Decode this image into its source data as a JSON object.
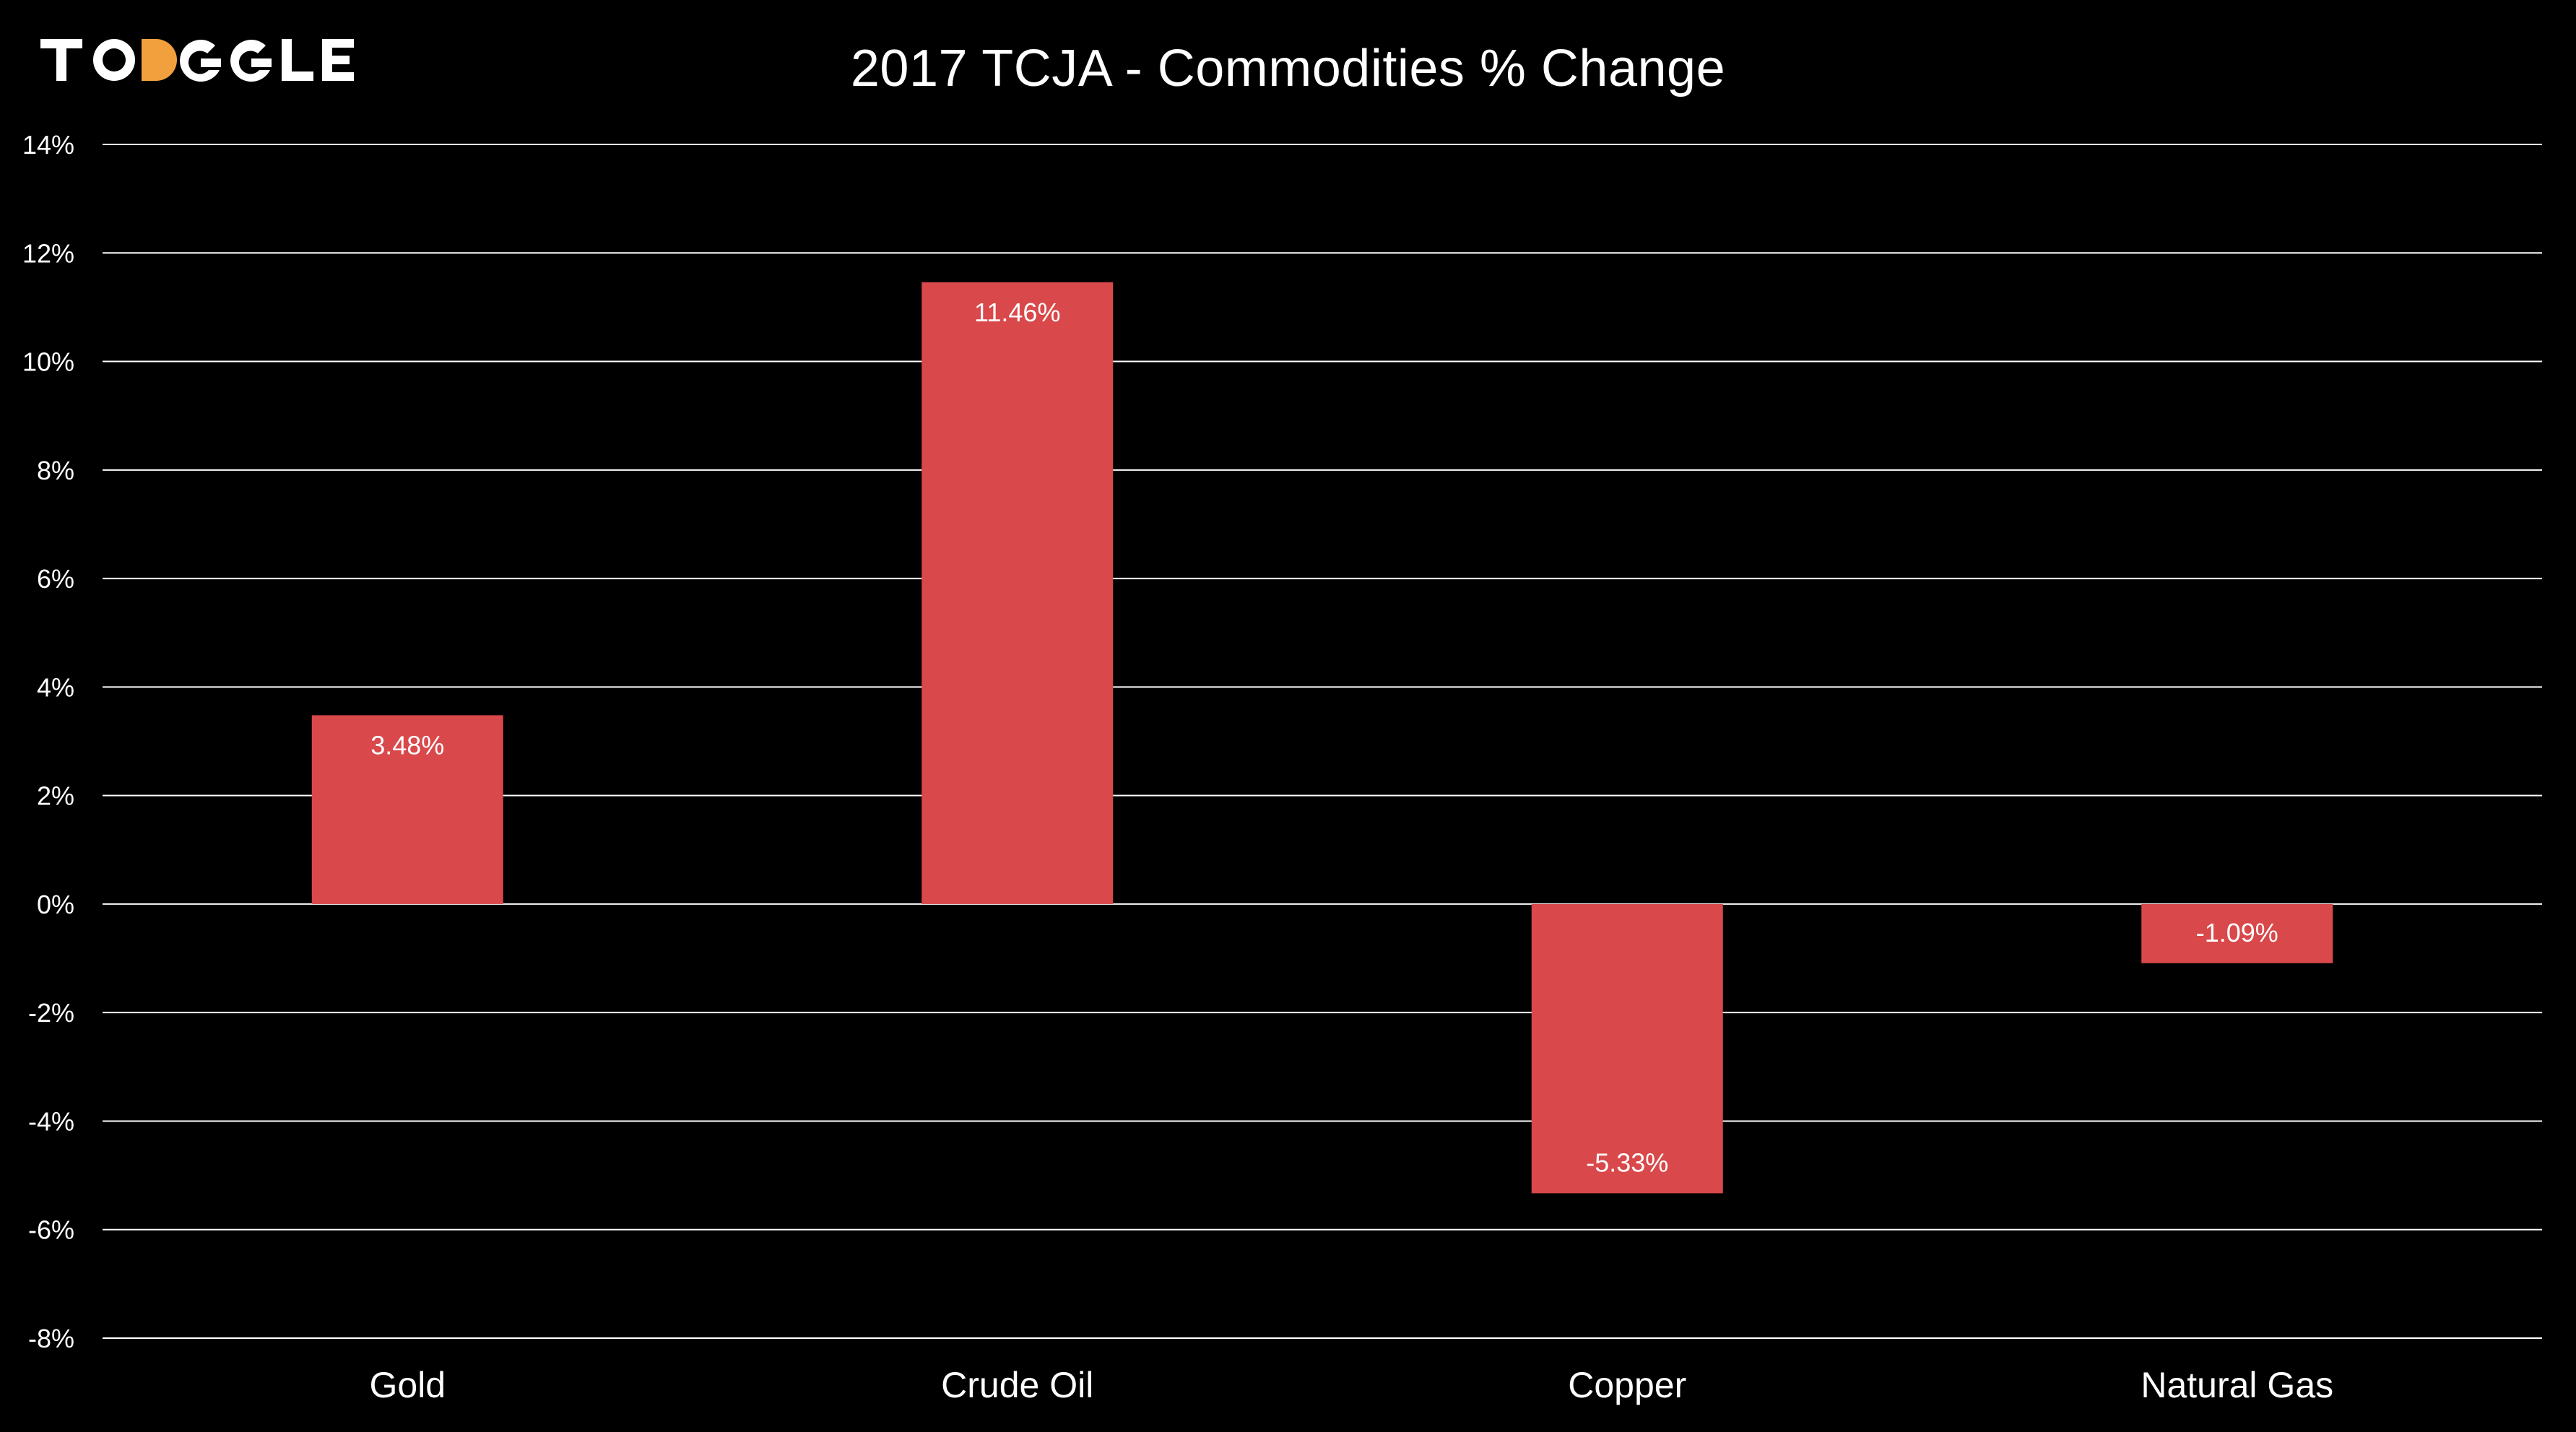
{
  "logo": {
    "text": "TOGGLE",
    "accent_color": "#f2a03d",
    "text_color": "#ffffff"
  },
  "colors": {
    "background": "#000000",
    "bar": "#d9484a",
    "gridline": "#ffffff",
    "text": "#ffffff"
  },
  "chart_data": {
    "type": "bar",
    "title": "2017 TCJA - Commodities % Change",
    "xlabel": "",
    "ylabel": "",
    "categories": [
      "Gold",
      "Crude Oil",
      "Copper",
      "Natural Gas"
    ],
    "values": [
      3.48,
      11.46,
      -5.33,
      -1.09
    ],
    "data_labels": [
      "3.48%",
      "11.46%",
      "-5.33%",
      "-1.09%"
    ],
    "ylim": [
      -8,
      14
    ],
    "yticks": [
      14,
      12,
      10,
      8,
      6,
      4,
      2,
      0,
      -2,
      -4,
      -6,
      -8
    ],
    "ytick_labels": [
      "14%",
      "12%",
      "10%",
      "8%",
      "6%",
      "4%",
      "2%",
      "0%",
      "-2%",
      "-4%",
      "-6%",
      "-8%"
    ],
    "grid": true,
    "legend": "none"
  }
}
